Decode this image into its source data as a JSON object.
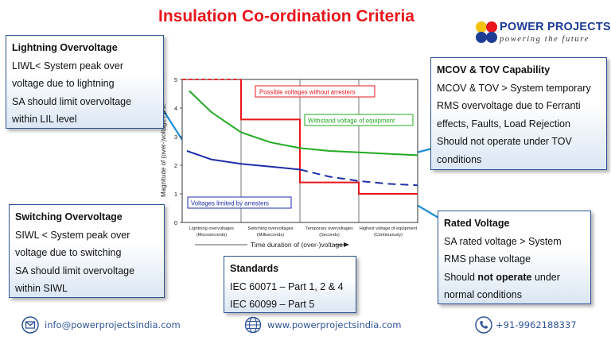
{
  "title": "Insulation Co-ordination Criteria",
  "logo": {
    "brand": "POWER PROJECTS",
    "tagline": "powering the future",
    "dot_colors": [
      "#f4c20d",
      "#e8161c",
      "#1d3c96",
      "#1d3c96"
    ]
  },
  "boxes": {
    "lightning": {
      "heading": "Lightning Overvoltage",
      "lines": [
        "LIWL< System peak over",
        "voltage due to lightning",
        "SA should limit overvoltage",
        "within LIL level"
      ]
    },
    "switching": {
      "heading": "Switching Overvoltage",
      "lines": [
        "SIWL < System peak over",
        "voltage due to switching",
        "SA should limit overvoltage",
        "within SIWL"
      ]
    },
    "mcov": {
      "heading": "MCOV & TOV Capability",
      "lines": [
        "MCOV & TOV > System temporary",
        "RMS overvoltage due to Ferranti",
        "effects, Faults, Load Rejection",
        "Should not operate under TOV",
        "conditions"
      ]
    },
    "rated": {
      "heading": "Rated Voltage",
      "lines": [
        "SA rated voltage > System",
        "RMS phase voltage"
      ],
      "line3_pre": "Should ",
      "line3_bold": "not operate",
      "line3_post": " under",
      "line4": "normal conditions"
    },
    "standards": {
      "heading": "Standards",
      "lines": [
        "IEC 60071 – Part 1, 2 & 4",
        "IEC 60099 – Part 5"
      ]
    }
  },
  "chart_data": {
    "type": "line",
    "ylabel": "Magnitude of (over-)voltage / p.u.",
    "xlabel": "Time duration of (over-)voltage",
    "yticks": [
      "0",
      "1",
      "2",
      "3",
      "4",
      "5"
    ],
    "ylim": [
      0,
      5
    ],
    "xlim": [
      0,
      4
    ],
    "categories": [
      [
        "Lightning overvoltages",
        "(Microseconds)"
      ],
      [
        "Switching overvoltages",
        "(Milliseconds)"
      ],
      [
        "Temporary overvoltages",
        "(Seconds)"
      ],
      [
        "Highest voltage of equipment",
        "(Continuously)"
      ]
    ],
    "series": [
      {
        "name": "Possible voltages without arresters",
        "color": "#e8161c",
        "style": "step",
        "dashed_segment_x": [
          0,
          1
        ],
        "x": [
          0,
          1,
          1,
          2,
          2,
          3,
          3,
          4
        ],
        "y": [
          5,
          5,
          3.6,
          3.6,
          1.4,
          1.4,
          1.0,
          1.0
        ]
      },
      {
        "name": "Withstand voltage of equipment",
        "color": "#22aa22",
        "style": "line",
        "x": [
          0.12,
          0.5,
          1.0,
          1.5,
          2.0,
          2.5,
          3.0,
          3.5,
          4.0
        ],
        "y": [
          4.6,
          3.85,
          3.15,
          2.8,
          2.6,
          2.5,
          2.45,
          2.4,
          2.35
        ]
      },
      {
        "name": "Voltages limited by arresters",
        "color": "#1f2fa8",
        "style": "line",
        "dashed_from_x": 2.0,
        "x": [
          0.08,
          0.5,
          1.0,
          1.5,
          2.0,
          2.5,
          3.0,
          3.5,
          4.0
        ],
        "y": [
          2.5,
          2.2,
          2.05,
          1.95,
          1.85,
          1.6,
          1.45,
          1.35,
          1.3
        ]
      }
    ]
  },
  "footer": {
    "email": "info@powerprojectsindia.com",
    "website": "www.powerprojectsindia.com",
    "phone": "+91-9962188337"
  },
  "colors": {
    "title": "#e8161c",
    "box_border": "#2f5597",
    "callout_line": "#1f8fd6"
  }
}
